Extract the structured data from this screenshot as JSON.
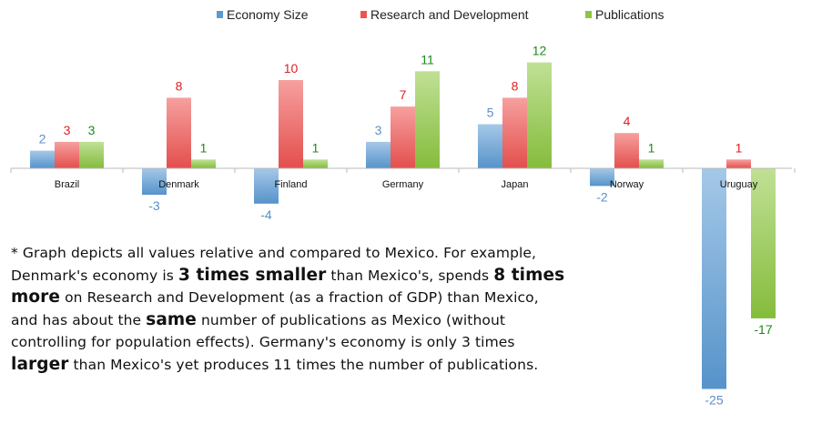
{
  "chart_data": {
    "type": "bar",
    "categories": [
      "Brazil",
      "Denmark",
      "Finland",
      "Germany",
      "Japan",
      "Norway",
      "Uruguay"
    ],
    "series": [
      {
        "name": "Economy Size",
        "values": [
          2,
          -3,
          -4,
          3,
          5,
          -2,
          -25
        ],
        "color": "#5b9bd5"
      },
      {
        "name": "Research and Development",
        "values": [
          3,
          8,
          10,
          7,
          8,
          4,
          1
        ],
        "color": "#ef5350"
      },
      {
        "name": "Publications",
        "values": [
          3,
          1,
          1,
          11,
          12,
          1,
          -17
        ],
        "color": "#8cc63f"
      }
    ],
    "label_colors": [
      "#5b8fc9",
      "#e02020",
      "#1e8a1e"
    ],
    "legend_position": "top",
    "grid": false,
    "ylim": [
      -25,
      12
    ]
  },
  "note": {
    "line1": "* Graph depicts all values relative and compared to Mexico. For example,",
    "line2a": "Denmark's economy is ",
    "line2b": "3 times smaller",
    "line2c": " than Mexico's, spends ",
    "line2d": "8 times",
    "line3a": "more",
    "line3b": " on Research and Development (as a fraction of GDP)  than Mexico,",
    "line4a": "and has about the ",
    "line4b": "same",
    "line4c": " number of publications as Mexico (without",
    "line5": "controlling for population effects). Germany's economy is only 3 times",
    "line6a": "larger",
    "line6b": " than Mexico's yet produces 11 times the number of publications."
  }
}
